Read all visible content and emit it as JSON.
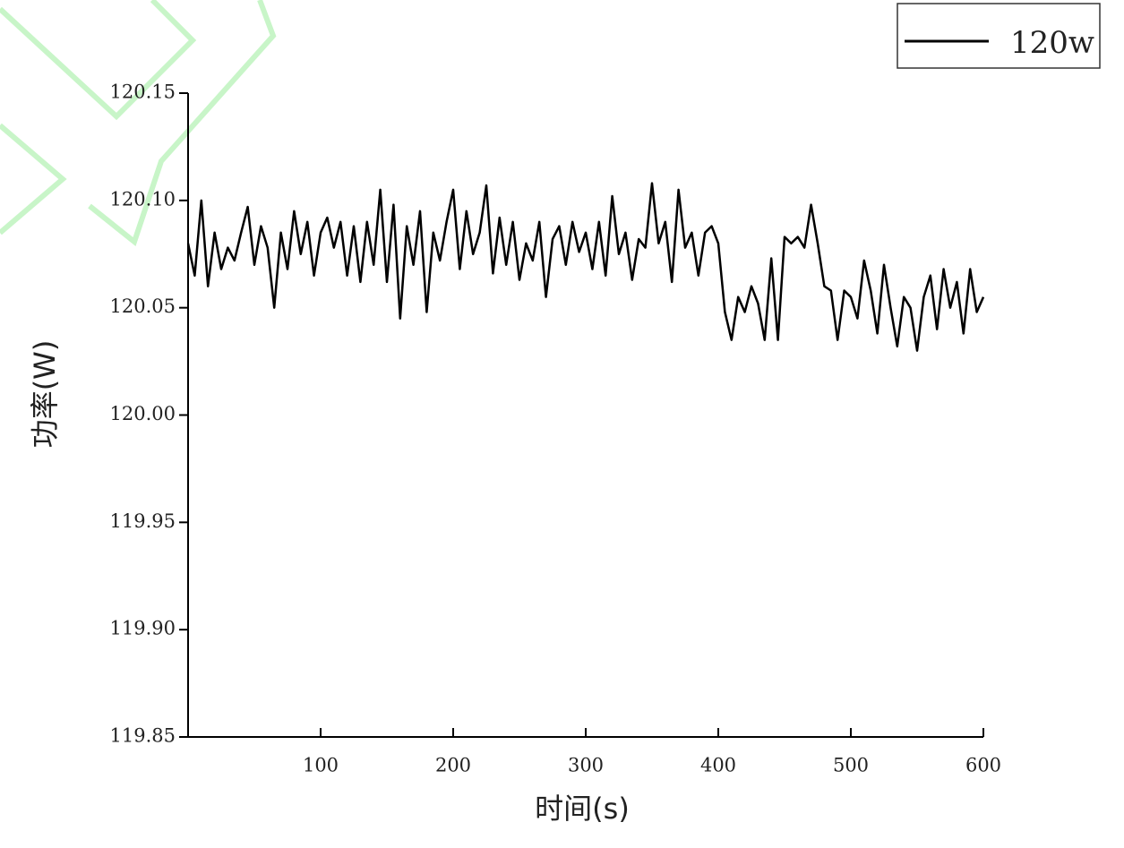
{
  "chart_data": {
    "type": "line",
    "x_label": "时间(s)",
    "y_label": "功率(W)",
    "xlim": [
      0,
      600
    ],
    "xticks": [
      100,
      200,
      300,
      400,
      500,
      600
    ],
    "ylim": [
      119.85,
      120.15
    ],
    "yticks": [
      {
        "value": 119.85,
        "label": "119.85"
      },
      {
        "value": 119.9,
        "label": "119.90"
      },
      {
        "value": 119.95,
        "label": "119.95"
      },
      {
        "value": 120,
        "label": "120.00"
      },
      {
        "value": 120.05,
        "label": "120.05"
      },
      {
        "value": 120.1,
        "label": "120.10"
      },
      {
        "value": 120.15,
        "label": "120.15"
      }
    ],
    "legend": "top-right",
    "x": [
      0,
      5,
      10,
      15,
      20,
      25,
      30,
      35,
      40,
      45,
      50,
      55,
      60,
      65,
      70,
      75,
      80,
      85,
      90,
      95,
      100,
      105,
      110,
      115,
      120,
      125,
      130,
      135,
      140,
      145,
      150,
      155,
      160,
      165,
      170,
      175,
      180,
      185,
      190,
      195,
      200,
      205,
      210,
      215,
      220,
      225,
      230,
      235,
      240,
      245,
      250,
      255,
      260,
      265,
      270,
      275,
      280,
      285,
      290,
      295,
      300,
      305,
      310,
      315,
      320,
      325,
      330,
      335,
      340,
      345,
      350,
      355,
      360,
      365,
      370,
      375,
      380,
      385,
      390,
      395,
      400,
      405,
      410,
      415,
      420,
      425,
      430,
      435,
      440,
      445,
      450,
      455,
      460,
      465,
      470,
      475,
      480,
      485,
      490,
      495,
      500,
      505,
      510,
      515,
      520,
      525,
      530,
      535,
      540,
      545,
      550,
      555,
      560,
      565,
      570,
      575,
      580,
      585,
      590,
      595,
      600
    ],
    "series": [
      {
        "name": "120w",
        "color": "#000000",
        "values": [
          120.08,
          120.065,
          120.1,
          120.06,
          120.085,
          120.068,
          120.078,
          120.072,
          120.085,
          120.097,
          120.07,
          120.088,
          120.078,
          120.05,
          120.085,
          120.068,
          120.095,
          120.075,
          120.09,
          120.065,
          120.085,
          120.092,
          120.078,
          120.09,
          120.065,
          120.088,
          120.062,
          120.09,
          120.07,
          120.105,
          120.062,
          120.098,
          120.045,
          120.088,
          120.07,
          120.095,
          120.048,
          120.085,
          120.072,
          120.09,
          120.105,
          120.068,
          120.095,
          120.075,
          120.085,
          120.107,
          120.066,
          120.092,
          120.07,
          120.09,
          120.063,
          120.08,
          120.072,
          120.09,
          120.055,
          120.082,
          120.088,
          120.07,
          120.09,
          120.076,
          120.085,
          120.068,
          120.09,
          120.065,
          120.102,
          120.075,
          120.085,
          120.063,
          120.082,
          120.078,
          120.108,
          120.08,
          120.09,
          120.062,
          120.105,
          120.078,
          120.085,
          120.065,
          120.085,
          120.088,
          120.08,
          120.048,
          120.035,
          120.055,
          120.048,
          120.06,
          120.052,
          120.035,
          120.073,
          120.035,
          120.083,
          120.08,
          120.083,
          120.078,
          120.098,
          120.08,
          120.06,
          120.058,
          120.035,
          120.058,
          120.055,
          120.045,
          120.072,
          120.058,
          120.038,
          120.07,
          120.05,
          120.032,
          120.055,
          120.05,
          120.03,
          120.055,
          120.065,
          120.04,
          120.068,
          120.05,
          120.062,
          120.038,
          120.068,
          120.048,
          120.055
        ]
      }
    ]
  }
}
